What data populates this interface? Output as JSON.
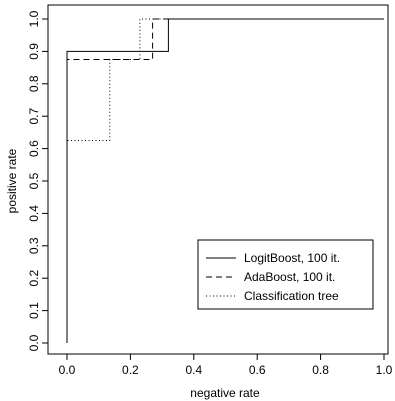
{
  "chart_data": {
    "type": "line",
    "title": "",
    "xlabel": "negative rate",
    "ylabel": "positive rate",
    "xlim": [
      0.0,
      1.0
    ],
    "ylim": [
      0.0,
      1.0
    ],
    "xticks": [
      "0.0",
      "0.2",
      "0.4",
      "0.6",
      "0.8",
      "1.0"
    ],
    "yticks": [
      "0.0",
      "0.1",
      "0.2",
      "0.3",
      "0.4",
      "0.5",
      "0.6",
      "0.7",
      "0.8",
      "0.9",
      "1.0"
    ],
    "grid": false,
    "legend_position": "bottom-right",
    "series": [
      {
        "name": "LogitBoost, 100 it.",
        "line_style": "solid",
        "x": [
          0.0,
          0.0,
          0.32,
          0.32,
          1.0
        ],
        "y": [
          0.0,
          0.9,
          0.9,
          1.0,
          1.0
        ]
      },
      {
        "name": "AdaBoost, 100 it.",
        "line_style": "dashed",
        "x": [
          0.0,
          0.0,
          0.27,
          0.27,
          1.0
        ],
        "y": [
          0.0,
          0.875,
          0.875,
          1.0,
          1.0
        ]
      },
      {
        "name": "Classification tree",
        "line_style": "dotted",
        "x": [
          0.0,
          0.0,
          0.135,
          0.135,
          0.23,
          0.23,
          1.0
        ],
        "y": [
          0.0,
          0.625,
          0.625,
          0.875,
          0.875,
          1.0,
          1.0
        ]
      }
    ]
  }
}
